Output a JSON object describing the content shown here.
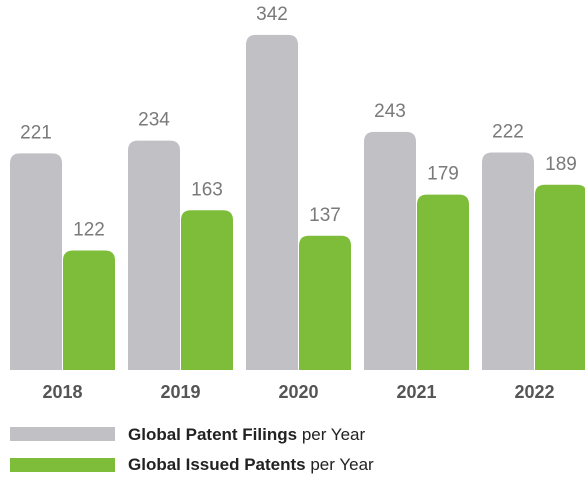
{
  "chart_data": {
    "type": "bar",
    "categories": [
      "2018",
      "2019",
      "2020",
      "2021",
      "2022"
    ],
    "series": [
      {
        "name": "Global Patent Filings",
        "color": "#c1c1c5",
        "values": [
          221,
          234,
          342,
          243,
          222
        ]
      },
      {
        "name": "Global Issued Patents",
        "color": "#7dbd3a",
        "values": [
          122,
          163,
          137,
          179,
          189
        ]
      }
    ],
    "legend_suffix": "per Year"
  }
}
